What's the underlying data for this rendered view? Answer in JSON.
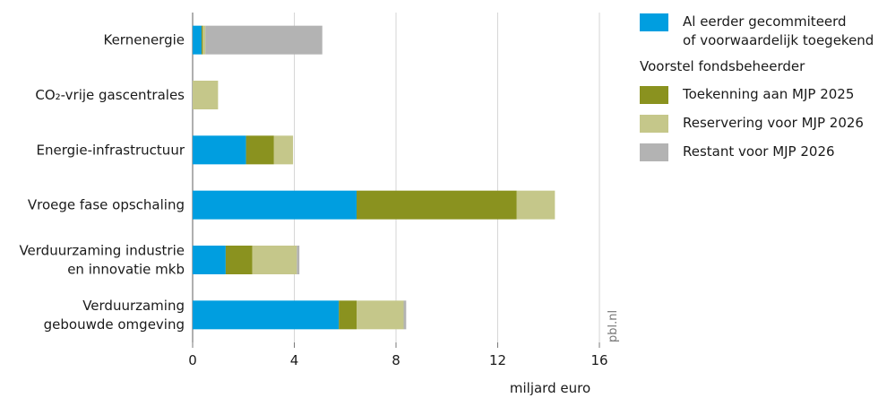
{
  "chart_data": {
    "type": "bar",
    "orientation": "horizontal",
    "stacked": true,
    "categories": [
      [
        "Kernenergie"
      ],
      [
        "CO₂-vrije gascentrales"
      ],
      [
        "Energie-infrastructuur"
      ],
      [
        "Vroege fase opschaling"
      ],
      [
        "Verduurzaming industrie",
        "en innovatie mkb"
      ],
      [
        "Verduurzaming",
        "gebouwde omgeving"
      ]
    ],
    "series": [
      {
        "name": "Al eerder gecommiteerd of voorwaardelijk toegekend",
        "color": "#009ee0",
        "values": [
          0.35,
          0,
          2.1,
          6.45,
          1.3,
          5.75
        ]
      },
      {
        "name": "Toekenning aan MJP 2025",
        "color": "#8a921f",
        "values": [
          0.05,
          0,
          1.1,
          6.3,
          1.05,
          0.7
        ]
      },
      {
        "name": "Reservering voor MJP 2026",
        "color": "#c5c78a",
        "values": [
          0.1,
          1.0,
          0.75,
          1.5,
          1.75,
          1.85
        ]
      },
      {
        "name": "Restant voor MJP 2026",
        "color": "#b3b3b3",
        "values": [
          4.6,
          0,
          0,
          0,
          0.1,
          0.1
        ]
      }
    ],
    "xlim": [
      0,
      16
    ],
    "xticks": [
      "0",
      "4",
      "8",
      "12",
      "16"
    ],
    "xlabel": "miljard euro",
    "grid": true,
    "legend_position": "right"
  },
  "legend": {
    "item1_line1": "Al eerder gecommiteerd",
    "item1_line2": "of voorwaardelijk toegekend",
    "heading": "Voorstel fondsbeheerder",
    "item2": "Toekenning aan MJP 2025",
    "item3": "Reservering voor MJP 2026",
    "item4": "Restant voor MJP 2026"
  },
  "source": "pbl.nl"
}
